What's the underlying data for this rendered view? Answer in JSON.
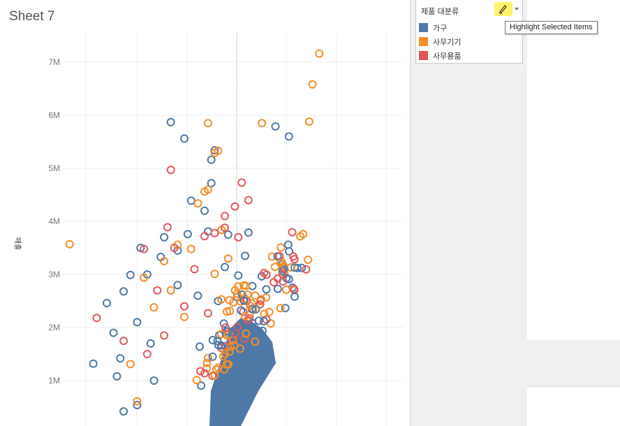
{
  "sheet": {
    "title": "Sheet 7"
  },
  "legend": {
    "title": "제품 대분류",
    "items": [
      {
        "label": "가구",
        "color": "#4e79a7"
      },
      {
        "label": "사무기기",
        "color": "#f28e2b"
      },
      {
        "label": "사무용품",
        "color": "#e15759"
      }
    ],
    "highlight_icon": "highlighter-pen-icon",
    "dropdown_icon": "chevron-down-icon"
  },
  "tooltip": {
    "text": "Highlight Selected Items"
  },
  "chart_data": {
    "type": "scatter",
    "ylabel": "매출",
    "xlabel": "",
    "yticks": [
      "1M",
      "2M",
      "3M",
      "4M",
      "5M",
      "6M",
      "7M"
    ],
    "ylim": [
      200000,
      7450000
    ],
    "grid": true,
    "marker": "hollow-circle",
    "series": [
      {
        "name": "가구",
        "color": "#4e79a7",
        "points": [
          [
            0.08,
            1320000
          ],
          [
            0.26,
            1000000
          ],
          [
            0.31,
            5870000
          ],
          [
            0.35,
            5560000
          ],
          [
            0.43,
            5160000
          ],
          [
            0.44,
            5340000
          ],
          [
            0.37,
            4390000
          ],
          [
            0.43,
            4720000
          ],
          [
            0.41,
            4200000
          ],
          [
            0.62,
            5790000
          ],
          [
            0.66,
            5600000
          ],
          [
            0.28,
            3330000
          ],
          [
            0.22,
            3500000
          ],
          [
            0.12,
            2460000
          ],
          [
            0.14,
            1900000
          ],
          [
            0.17,
            2680000
          ],
          [
            0.19,
            2990000
          ],
          [
            0.24,
            3000000
          ],
          [
            0.29,
            3700000
          ],
          [
            0.33,
            3450000
          ],
          [
            0.36,
            3760000
          ],
          [
            0.42,
            3810000
          ],
          [
            0.48,
            3750000
          ],
          [
            0.47,
            3140000
          ],
          [
            0.54,
            3790000
          ],
          [
            0.53,
            3350000
          ],
          [
            0.25,
            1700000
          ],
          [
            0.21,
            2100000
          ],
          [
            0.16,
            1420000
          ],
          [
            0.15,
            1080000
          ],
          [
            0.17,
            420000
          ],
          [
            0.21,
            540000
          ],
          [
            0.33,
            2800000
          ],
          [
            0.39,
            2600000
          ],
          [
            0.45,
            2500000
          ],
          [
            0.51,
            2980000
          ]
        ]
      },
      {
        "name": "사무기기",
        "color": "#f28e2b",
        "points": [
          [
            0.01,
            3570000
          ],
          [
            0.42,
            5850000
          ],
          [
            0.58,
            5850000
          ],
          [
            0.72,
            5880000
          ],
          [
            0.73,
            6580000
          ],
          [
            0.75,
            7160000
          ],
          [
            0.44,
            5290000
          ],
          [
            0.45,
            5330000
          ],
          [
            0.41,
            4560000
          ],
          [
            0.42,
            4600000
          ],
          [
            0.39,
            4340000
          ],
          [
            0.46,
            3840000
          ],
          [
            0.48,
            3300000
          ],
          [
            0.29,
            3250000
          ],
          [
            0.23,
            2940000
          ],
          [
            0.21,
            610000
          ],
          [
            0.19,
            1310000
          ],
          [
            0.33,
            3560000
          ],
          [
            0.37,
            3480000
          ],
          [
            0.44,
            3010000
          ],
          [
            0.31,
            2700000
          ],
          [
            0.26,
            2380000
          ],
          [
            0.46,
            2530000
          ],
          [
            0.35,
            2200000
          ],
          [
            0.5,
            2700000
          ]
        ]
      },
      {
        "name": "사무용품",
        "color": "#e15759",
        "points": [
          [
            0.09,
            2180000
          ],
          [
            0.17,
            1750000
          ],
          [
            0.31,
            4970000
          ],
          [
            0.52,
            4730000
          ],
          [
            0.54,
            4400000
          ],
          [
            0.5,
            4280000
          ],
          [
            0.47,
            4100000
          ],
          [
            0.44,
            3780000
          ],
          [
            0.41,
            3720000
          ],
          [
            0.3,
            3890000
          ],
          [
            0.23,
            3480000
          ],
          [
            0.51,
            3700000
          ],
          [
            0.32,
            3500000
          ],
          [
            0.38,
            3100000
          ],
          [
            0.27,
            2700000
          ],
          [
            0.35,
            2400000
          ],
          [
            0.42,
            2270000
          ],
          [
            0.24,
            1500000
          ],
          [
            0.29,
            1850000
          ],
          [
            0.47,
            3880000
          ]
        ]
      }
    ]
  }
}
